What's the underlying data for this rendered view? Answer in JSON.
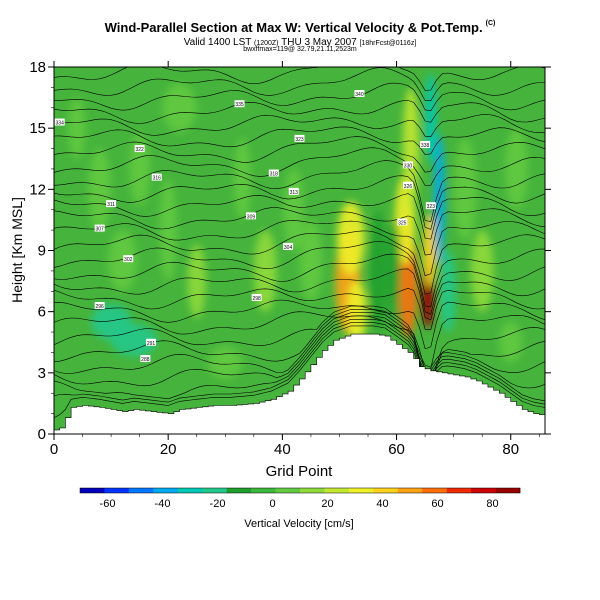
{
  "header": {
    "title": "Wind-Parallel Section at Max W: Vertical Velocity & Pot.Temp.",
    "title_mark": "(C)",
    "subtitle_main": "Valid 1400 LST",
    "subtitle_utc": "(1200Z)",
    "subtitle_date": "THU 3 May 2007",
    "subtitle_run": "[18hrFcst@0116z]",
    "subtitle2": "bwxffmax=119@ 32.79,21.11,2523m"
  },
  "chart_data": {
    "type": "heatmap",
    "xlabel": "Grid Point",
    "ylabel": "Height [Km MSL]",
    "xlim": [
      0,
      86
    ],
    "ylim": [
      0,
      18
    ],
    "xticks": [
      0,
      20,
      40,
      60,
      80
    ],
    "yticks": [
      0,
      3,
      6,
      9,
      12,
      15,
      18
    ],
    "grid": false,
    "colorbar": {
      "label": "Vertical Velocity [cm/s]",
      "range": [
        -70,
        90
      ],
      "ticks": [
        -60,
        -40,
        -20,
        0,
        20,
        40,
        60,
        80
      ],
      "colors": [
        "#0000bb",
        "#0033ff",
        "#0077ff",
        "#00aaee",
        "#00c8b4",
        "#22c88c",
        "#1f9e2c",
        "#3cb83c",
        "#62ca40",
        "#8fda3c",
        "#c2e830",
        "#eef028",
        "#ffd21e",
        "#ffa214",
        "#ff6e0a",
        "#ee2a00",
        "#cc0000",
        "#990000"
      ]
    },
    "terrain": [
      [
        0,
        0.2
      ],
      [
        1,
        0.3
      ],
      [
        2,
        0.8
      ],
      [
        3,
        1.3
      ],
      [
        5,
        1.4
      ],
      [
        8,
        1.3
      ],
      [
        10,
        1.2
      ],
      [
        12,
        1.1
      ],
      [
        14,
        1.2
      ],
      [
        17,
        1.1
      ],
      [
        20,
        1.0
      ],
      [
        22,
        1.2
      ],
      [
        25,
        1.3
      ],
      [
        28,
        1.4
      ],
      [
        31,
        1.4
      ],
      [
        35,
        1.5
      ],
      [
        38,
        1.7
      ],
      [
        41,
        2.1
      ],
      [
        43,
        2.7
      ],
      [
        45,
        3.4
      ],
      [
        47,
        4.1
      ],
      [
        49,
        4.6
      ],
      [
        52,
        4.9
      ],
      [
        56,
        4.9
      ],
      [
        58,
        4.8
      ],
      [
        60,
        4.4
      ],
      [
        62,
        4.0
      ],
      [
        63,
        3.7
      ],
      [
        64,
        3.3
      ],
      [
        66,
        3.1
      ],
      [
        68,
        3.0
      ],
      [
        70,
        2.9
      ],
      [
        72,
        2.8
      ],
      [
        74,
        2.6
      ],
      [
        76,
        2.3
      ],
      [
        78,
        2.0
      ],
      [
        80,
        1.6
      ],
      [
        82,
        1.2
      ],
      [
        84,
        1.0
      ],
      [
        86,
        0.9
      ]
    ],
    "velocity_features": [
      {
        "x": 51.5,
        "y": 7.5,
        "wx": 2.2,
        "wy": 2.6,
        "value": 50
      },
      {
        "x": 52.0,
        "y": 9.6,
        "wx": 2.4,
        "wy": 1.8,
        "value": 30
      },
      {
        "x": 53.0,
        "y": 6.0,
        "wx": 1.8,
        "wy": 1.5,
        "value": 35
      },
      {
        "x": 62.0,
        "y": 7.5,
        "wx": 1.6,
        "wy": 2.8,
        "value": 60
      },
      {
        "x": 61.5,
        "y": 10.5,
        "wx": 1.8,
        "wy": 2.2,
        "value": 35
      },
      {
        "x": 62.5,
        "y": 14.0,
        "wx": 1.4,
        "wy": 3.0,
        "value": 25
      },
      {
        "x": 65.5,
        "y": 6.8,
        "wx": 1.2,
        "wy": 1.6,
        "value": 95
      },
      {
        "x": 65.8,
        "y": 9.0,
        "wx": 1.2,
        "wy": 1.8,
        "value": 45
      },
      {
        "x": 56.8,
        "y": 8.0,
        "wx": 1.4,
        "wy": 3.0,
        "value": -12
      },
      {
        "x": 59.5,
        "y": 8.0,
        "wx": 1.2,
        "wy": 2.5,
        "value": -8
      },
      {
        "x": 67.5,
        "y": 11.5,
        "wx": 1.0,
        "wy": 3.2,
        "value": -35
      },
      {
        "x": 66.0,
        "y": 15.5,
        "wx": 1.0,
        "wy": 2.2,
        "value": -28
      },
      {
        "x": 69.0,
        "y": 7.0,
        "wx": 1.4,
        "wy": 2.0,
        "value": -18
      },
      {
        "x": 10.0,
        "y": 5.5,
        "wx": 3.5,
        "wy": 0.9,
        "value": -25
      },
      {
        "x": 14.0,
        "y": 4.6,
        "wx": 4.0,
        "wy": 0.8,
        "value": -20
      },
      {
        "x": 4.0,
        "y": 15.0,
        "wx": 1.5,
        "wy": 1.5,
        "value": 8
      },
      {
        "x": 8.0,
        "y": 12.0,
        "wx": 2.0,
        "wy": 2.0,
        "value": 7
      },
      {
        "x": 12.0,
        "y": 8.5,
        "wx": 2.5,
        "wy": 1.5,
        "value": 9
      },
      {
        "x": 15.0,
        "y": 13.0,
        "wx": 1.8,
        "wy": 1.8,
        "value": 6
      },
      {
        "x": 25.0,
        "y": 7.5,
        "wx": 1.6,
        "wy": 1.8,
        "value": 12
      },
      {
        "x": 33.0,
        "y": 12.5,
        "wx": 1.5,
        "wy": 2.0,
        "value": 8
      },
      {
        "x": 37.0,
        "y": 8.0,
        "wx": 2.0,
        "wy": 2.0,
        "value": 10
      },
      {
        "x": 42.0,
        "y": 11.0,
        "wx": 1.8,
        "wy": 2.0,
        "value": 7
      },
      {
        "x": 45.0,
        "y": 8.5,
        "wx": 2.0,
        "wy": 2.0,
        "value": 9
      },
      {
        "x": 75.0,
        "y": 8.0,
        "wx": 2.0,
        "wy": 2.0,
        "value": 10
      },
      {
        "x": 72.0,
        "y": 12.0,
        "wx": 2.0,
        "wy": 2.5,
        "value": 7
      },
      {
        "x": 80.0,
        "y": 4.5,
        "wx": 2.0,
        "wy": 1.0,
        "value": 9
      },
      {
        "x": 81.0,
        "y": 13.0,
        "wx": 2.0,
        "wy": 2.0,
        "value": 6
      },
      {
        "x": 22.0,
        "y": 16.0,
        "wx": 3.0,
        "wy": 1.2,
        "value": 5
      },
      {
        "x": 30.0,
        "y": 3.5,
        "wx": 3.0,
        "wy": 0.8,
        "value": 8
      },
      {
        "x": 20.0,
        "y": 10.0,
        "wx": 1.5,
        "wy": 2.5,
        "value": 5
      }
    ],
    "isentrope_labels": [
      {
        "x": 1.0,
        "y": 15.3,
        "text": "334"
      },
      {
        "x": 32.5,
        "y": 16.2,
        "text": "335"
      },
      {
        "x": 53.5,
        "y": 16.7,
        "text": "340"
      },
      {
        "x": 15.0,
        "y": 14.0,
        "text": "322"
      },
      {
        "x": 43.0,
        "y": 14.5,
        "text": "323"
      },
      {
        "x": 65.0,
        "y": 14.2,
        "text": "338"
      },
      {
        "x": 18.0,
        "y": 12.6,
        "text": "316"
      },
      {
        "x": 38.5,
        "y": 12.8,
        "text": "318"
      },
      {
        "x": 62.0,
        "y": 13.2,
        "text": "330"
      },
      {
        "x": 10.0,
        "y": 11.3,
        "text": "311"
      },
      {
        "x": 42.0,
        "y": 11.9,
        "text": "313"
      },
      {
        "x": 62.0,
        "y": 12.2,
        "text": "326"
      },
      {
        "x": 34.5,
        "y": 10.7,
        "text": "309"
      },
      {
        "x": 61.0,
        "y": 10.4,
        "text": "325"
      },
      {
        "x": 66.0,
        "y": 11.2,
        "text": "323"
      },
      {
        "x": 8.0,
        "y": 10.1,
        "text": "307"
      },
      {
        "x": 41.0,
        "y": 9.2,
        "text": "304"
      },
      {
        "x": 13.0,
        "y": 8.6,
        "text": "302"
      },
      {
        "x": 8.0,
        "y": 6.3,
        "text": "296"
      },
      {
        "x": 35.5,
        "y": 6.7,
        "text": "298"
      },
      {
        "x": 17.0,
        "y": 4.5,
        "text": "291"
      },
      {
        "x": 16.0,
        "y": 3.7,
        "text": "288"
      }
    ]
  }
}
